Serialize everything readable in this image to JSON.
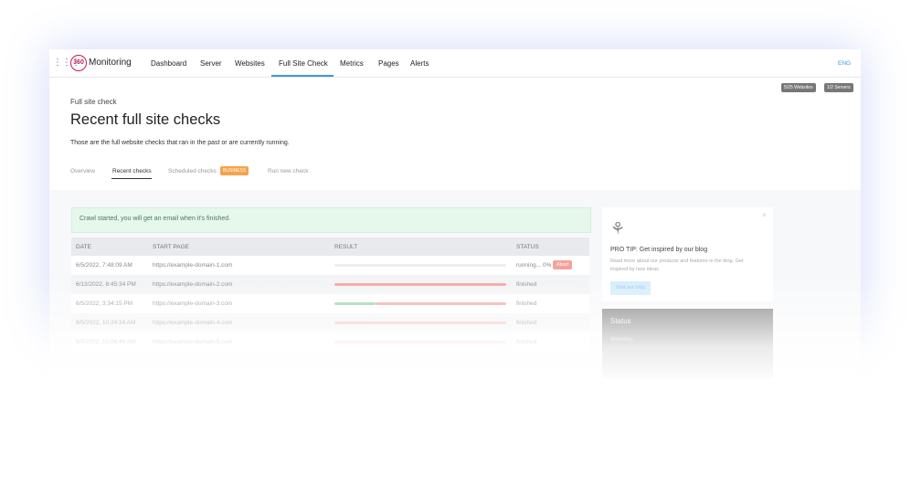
{
  "logo": {
    "mark": "360",
    "name": "Monitoring"
  },
  "nav": {
    "items": [
      "Dashboard",
      "Server",
      "Websites",
      "Full Site Check",
      "Metrics",
      "Pages",
      "Alerts"
    ],
    "language": "ENG"
  },
  "badges": [
    "5/25 Websites",
    "1/2 Servers"
  ],
  "header": {
    "breadcrumb": "Full site check",
    "title": "Recent full site checks",
    "description": "Those are the full website checks that ran in the past or are currently running."
  },
  "tabs": {
    "items": [
      "Overview",
      "Recent checks",
      "Scheduled checks",
      "Run new check"
    ],
    "badge": "BUSINESS"
  },
  "alert": "Crawl started, you will get an email when it's finished.",
  "table": {
    "headers": [
      "DATE",
      "START PAGE",
      "RESULT",
      "STATUS"
    ],
    "rows": [
      [
        "6/5/2022, 7:48:09 AM",
        "https://example-domain-1.com",
        "running... 0%"
      ],
      [
        "6/13/2022, 8:45:34 PM",
        "https://example-domain-2.com",
        "finished"
      ],
      [
        "6/5/2022, 3:34:15 PM",
        "https://example-domain-3.com",
        "finished"
      ],
      [
        "6/5/2022, 10:24:24 AM",
        "https://example-domain-4.com",
        "finished"
      ],
      [
        "6/5/2022, 10:06:46 AM",
        "https://example-domain-5.com",
        "finished"
      ]
    ],
    "abort": "Abort"
  },
  "tip": {
    "title": "PRO TIP: Get inspired by our blog",
    "text": "Read more about our products and features in the blog. Get inspired by new ideas",
    "button": "Visit our blog"
  },
  "status": {
    "title": "Status",
    "label": "Websites"
  }
}
